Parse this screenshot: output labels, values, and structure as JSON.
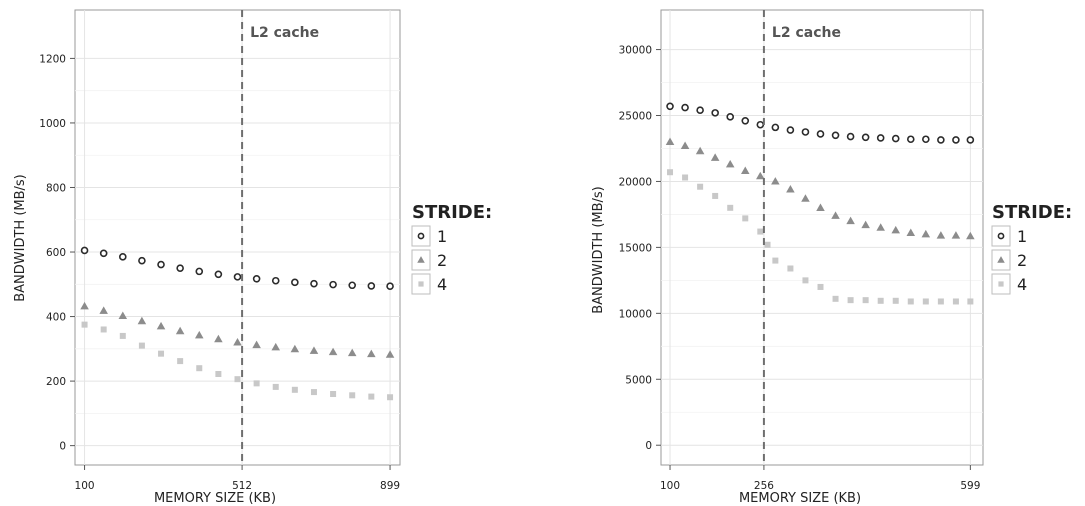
{
  "chart_data": [
    {
      "type": "scatter",
      "title": "",
      "xlabel": "MEMORY SIZE (KB)",
      "ylabel": "BANDWIDTH (MB/s)",
      "xlim": [
        75,
        925
      ],
      "ylim": [
        -60,
        1350
      ],
      "x_ticks": [
        100,
        512,
        899
      ],
      "y_ticks": [
        0,
        200,
        400,
        600,
        800,
        1000,
        1200
      ],
      "grid": true,
      "legend": {
        "title": "STRIDE:",
        "placement": "right",
        "entries": [
          "1",
          "2",
          "4"
        ]
      },
      "annotation": {
        "x": 512,
        "label": "L2 cache",
        "style": "dashed-vertical"
      },
      "series": [
        {
          "name": "1",
          "marker": "circle",
          "color": "#2b2b2b",
          "x": [
            100,
            150,
            200,
            250,
            300,
            350,
            400,
            450,
            500,
            550,
            600,
            650,
            700,
            750,
            800,
            850,
            899
          ],
          "y": [
            605,
            596,
            585,
            573,
            561,
            550,
            540,
            531,
            523,
            517,
            511,
            506,
            502,
            499,
            497,
            495,
            494
          ]
        },
        {
          "name": "2",
          "marker": "triangle",
          "color": "#8c8c8c",
          "x": [
            100,
            150,
            200,
            250,
            300,
            350,
            400,
            450,
            500,
            550,
            600,
            650,
            700,
            750,
            800,
            850,
            899
          ],
          "y": [
            432,
            418,
            402,
            386,
            370,
            355,
            342,
            330,
            320,
            312,
            305,
            299,
            294,
            290,
            287,
            284,
            282
          ]
        },
        {
          "name": "4",
          "marker": "square",
          "color": "#c8c8c8",
          "x": [
            100,
            150,
            200,
            250,
            300,
            350,
            400,
            450,
            500,
            550,
            600,
            650,
            700,
            750,
            800,
            850,
            899
          ],
          "y": [
            375,
            360,
            340,
            310,
            285,
            262,
            240,
            222,
            206,
            193,
            182,
            173,
            166,
            160,
            156,
            152,
            150
          ]
        }
      ]
    },
    {
      "type": "scatter",
      "title": "",
      "xlabel": "MEMORY SIZE (KB)",
      "ylabel": "BANDWIDTH (MB/s)",
      "xlim": [
        85,
        620
      ],
      "ylim": [
        -1500,
        33000
      ],
      "x_ticks": [
        100,
        256,
        599
      ],
      "y_ticks": [
        0,
        5000,
        10000,
        15000,
        20000,
        25000,
        30000
      ],
      "grid": true,
      "legend": {
        "title": "STRIDE:",
        "placement": "right",
        "entries": [
          "1",
          "2",
          "4"
        ]
      },
      "annotation": {
        "x": 256,
        "label": "L2 cache",
        "style": "dashed-vertical"
      },
      "series": [
        {
          "name": "1",
          "marker": "circle",
          "color": "#2b2b2b",
          "x": [
            100,
            125,
            150,
            175,
            200,
            225,
            250,
            275,
            300,
            325,
            350,
            375,
            400,
            425,
            450,
            475,
            500,
            525,
            550,
            575,
            599
          ],
          "y": [
            25700,
            25600,
            25400,
            25200,
            24900,
            24600,
            24300,
            24100,
            23900,
            23750,
            23600,
            23500,
            23400,
            23350,
            23300,
            23250,
            23200,
            23200,
            23150,
            23150,
            23150
          ]
        },
        {
          "name": "2",
          "marker": "triangle",
          "color": "#8c8c8c",
          "x": [
            100,
            125,
            150,
            175,
            200,
            225,
            250,
            275,
            300,
            325,
            350,
            375,
            400,
            425,
            450,
            475,
            500,
            525,
            550,
            575,
            599
          ],
          "y": [
            23000,
            22700,
            22300,
            21800,
            21300,
            20800,
            20400,
            20000,
            19400,
            18700,
            18000,
            17400,
            17000,
            16700,
            16500,
            16300,
            16100,
            16000,
            15900,
            15900,
            15850
          ]
        },
        {
          "name": "4",
          "marker": "square",
          "color": "#c8c8c8",
          "x": [
            100,
            125,
            150,
            175,
            200,
            225,
            250,
            262,
            275,
            300,
            325,
            350,
            375,
            400,
            425,
            450,
            475,
            500,
            525,
            550,
            575,
            599
          ],
          "y": [
            20700,
            20300,
            19600,
            18900,
            18000,
            17200,
            16200,
            15200,
            14000,
            13400,
            12500,
            12000,
            11100,
            11000,
            11000,
            10950,
            10950,
            10900,
            10900,
            10900,
            10900,
            10900
          ]
        }
      ]
    }
  ]
}
